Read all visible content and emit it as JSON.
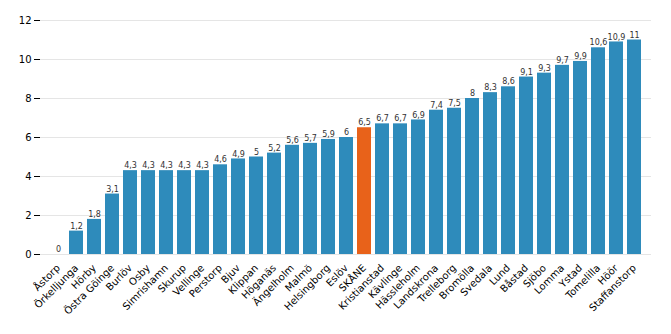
{
  "chart_data": {
    "type": "bar",
    "categories": [
      "Åstorp",
      "Örkelljunga",
      "Hörby",
      "Östra Göinge",
      "Burlöv",
      "Osby",
      "Simrishamn",
      "Skurup",
      "Vellinge",
      "Perstorp",
      "Bjuv",
      "Klippan",
      "Höganäs",
      "Ängelholm",
      "Malmö",
      "Helsingborg",
      "Eslöv",
      "SKÅNE",
      "Kristianstad",
      "Kävlinge",
      "Hässleholm",
      "Landskrona",
      "Trelleborg",
      "Bromölla",
      "Svedala",
      "Lund",
      "Båstad",
      "Sjöbo",
      "Lomma",
      "Ystad",
      "Tomelilla",
      "Höör",
      "Staffanstorp"
    ],
    "values": [
      0,
      1.2,
      1.8,
      3.1,
      4.3,
      4.3,
      4.3,
      4.3,
      4.3,
      4.6,
      4.9,
      5.0,
      5.2,
      5.6,
      5.7,
      5.9,
      6.0,
      6.5,
      6.7,
      6.7,
      6.9,
      7.4,
      7.5,
      8.0,
      8.3,
      8.6,
      9.1,
      9.3,
      9.7,
      9.9,
      10.6,
      10.9,
      11.0
    ],
    "value_labels": [
      "0",
      "1,2",
      "1,8",
      "3,1",
      "4,3",
      "4,3",
      "4,3",
      "4,3",
      "4,3",
      "4,6",
      "4,9",
      "5",
      "5,2",
      "5,6",
      "5,7",
      "5,9",
      "6",
      "6,5",
      "6,7",
      "6,7",
      "6,9",
      "7,4",
      "7,5",
      "8",
      "8,3",
      "8,6",
      "9,1",
      "9,3",
      "9,7",
      "9,9",
      "10,6",
      "10,9",
      "11"
    ],
    "colors": [
      "#2E8BBB",
      "#2E8BBB",
      "#2E8BBB",
      "#2E8BBB",
      "#2E8BBB",
      "#2E8BBB",
      "#2E8BBB",
      "#2E8BBB",
      "#2E8BBB",
      "#2E8BBB",
      "#2E8BBB",
      "#2E8BBB",
      "#2E8BBB",
      "#2E8BBB",
      "#2E8BBB",
      "#2E8BBB",
      "#2E8BBB",
      "#E8621A",
      "#2E8BBB",
      "#2E8BBB",
      "#2E8BBB",
      "#2E8BBB",
      "#2E8BBB",
      "#2E8BBB",
      "#2E8BBB",
      "#2E8BBB",
      "#2E8BBB",
      "#2E8BBB",
      "#2E8BBB",
      "#2E8BBB",
      "#2E8BBB",
      "#2E8BBB",
      "#2E8BBB"
    ],
    "ylim": [
      0,
      12
    ],
    "yticks": [
      0,
      2,
      4,
      6,
      8,
      10,
      12
    ],
    "grid": true,
    "data_labels": true
  }
}
